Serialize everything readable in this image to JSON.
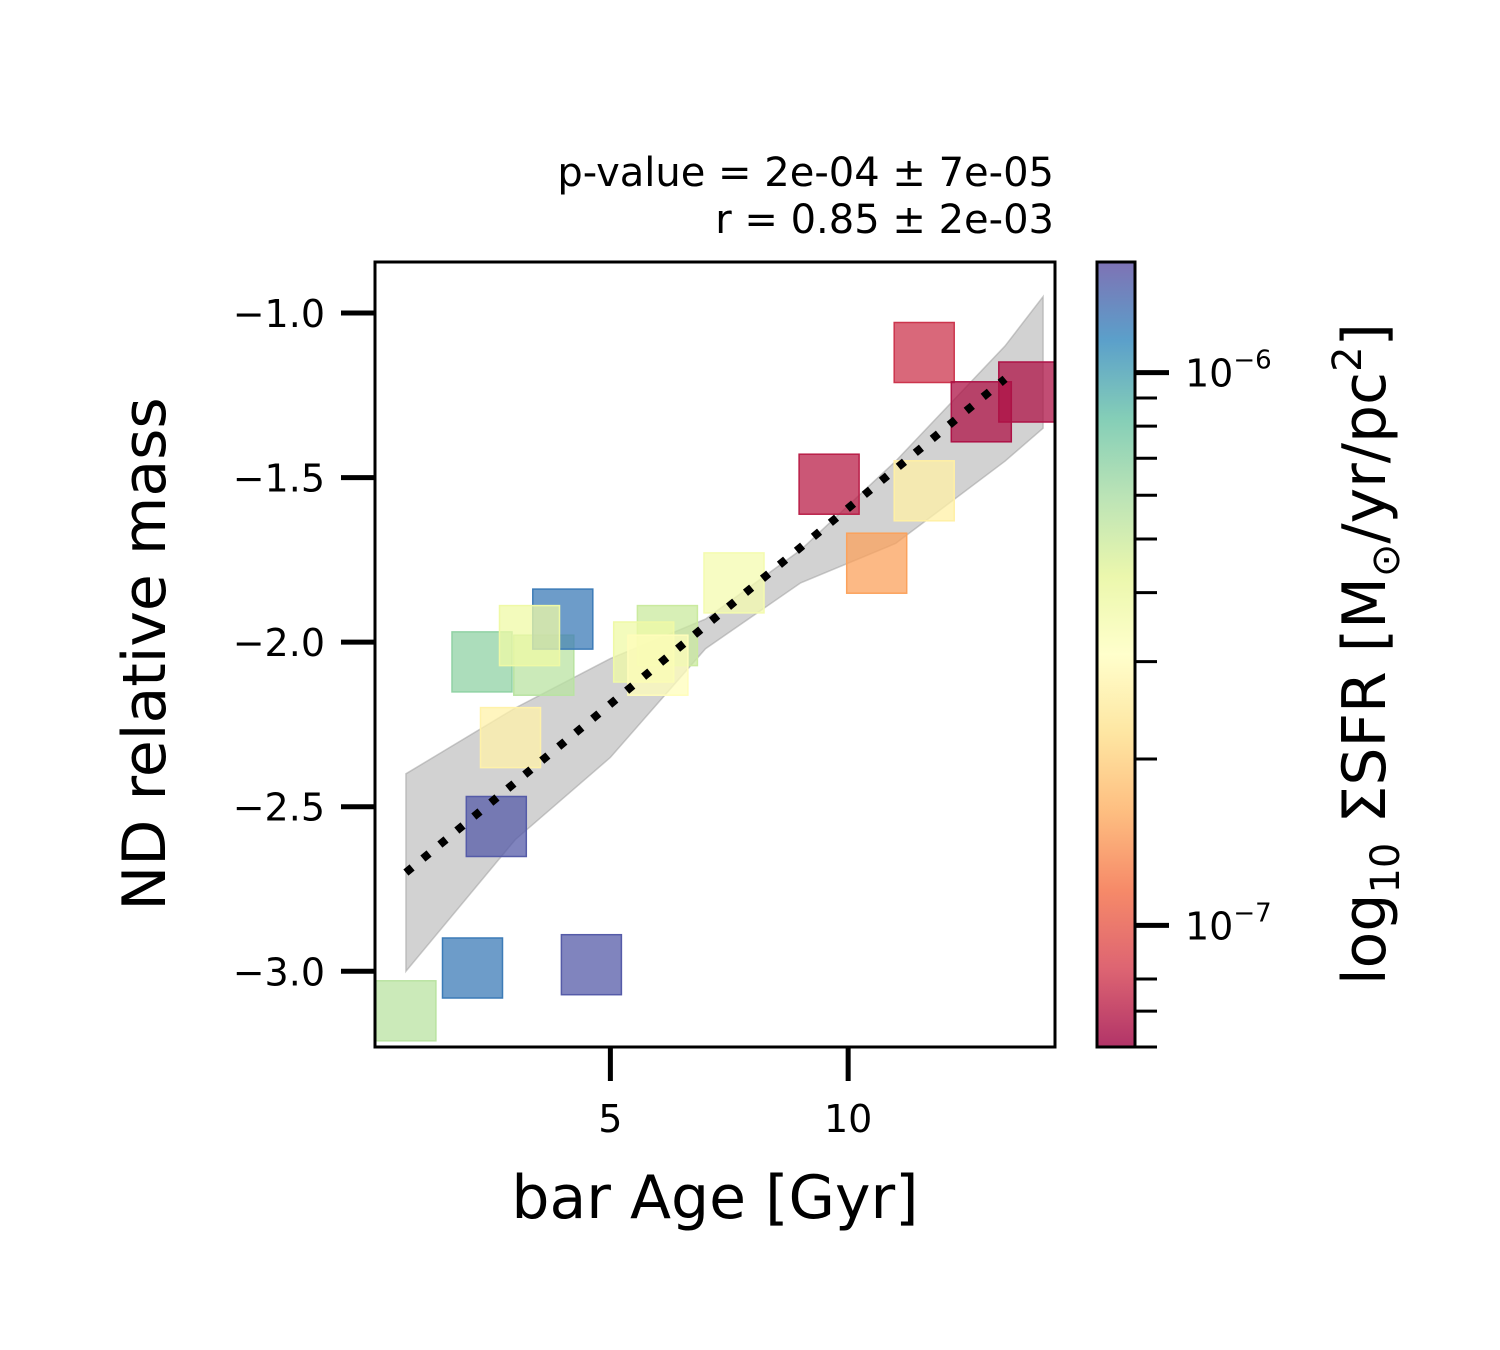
{
  "chart_data": {
    "type": "scatter",
    "annotation_lines": [
      "p-value = 2e-04 ± 7e-05",
      "r = 0.85 ± 2e-03"
    ],
    "xlabel": "bar Age [Gyr]",
    "ylabel": "ND relative mass",
    "xlim": [
      0.05,
      14.35
    ],
    "ylim": [
      -3.23,
      -0.845
    ],
    "x_ticks": [
      5,
      10
    ],
    "x_tick_labels": [
      "5",
      "10"
    ],
    "y_ticks": [
      -1.0,
      -1.5,
      -2.0,
      -2.5,
      -3.0
    ],
    "y_tick_labels": [
      "−1.0",
      "−1.5",
      "−2.0",
      "−2.5",
      "−3.0"
    ],
    "points": [
      {
        "x": 0.7,
        "y": -3.12,
        "log_sfr": -6.26
      },
      {
        "x": 2.1,
        "y": -2.99,
        "log_sfr": -5.91
      },
      {
        "x": 4.6,
        "y": -2.98,
        "log_sfr": -5.83
      },
      {
        "x": 2.6,
        "y": -2.56,
        "log_sfr": -5.83
      },
      {
        "x": 2.9,
        "y": -2.29,
        "log_sfr": -6.57
      },
      {
        "x": 2.3,
        "y": -2.06,
        "log_sfr": -6.17
      },
      {
        "x": 3.6,
        "y": -2.07,
        "log_sfr": -6.26
      },
      {
        "x": 4.0,
        "y": -1.93,
        "log_sfr": -5.91
      },
      {
        "x": 3.3,
        "y": -1.98,
        "log_sfr": -6.42
      },
      {
        "x": 6.2,
        "y": -1.98,
        "log_sfr": -6.3
      },
      {
        "x": 5.7,
        "y": -2.03,
        "log_sfr": -6.42
      },
      {
        "x": 6.0,
        "y": -2.07,
        "log_sfr": -6.52
      },
      {
        "x": 7.6,
        "y": -1.82,
        "log_sfr": -6.45
      },
      {
        "x": 9.6,
        "y": -1.52,
        "log_sfr": -7.15
      },
      {
        "x": 10.6,
        "y": -1.76,
        "log_sfr": -6.82
      },
      {
        "x": 11.6,
        "y": -1.54,
        "log_sfr": -6.58
      },
      {
        "x": 11.6,
        "y": -1.12,
        "log_sfr": -7.1
      },
      {
        "x": 13.8,
        "y": -1.24,
        "log_sfr": -7.18
      },
      {
        "x": 12.8,
        "y": -1.3,
        "log_sfr": -7.18
      }
    ],
    "fit_line": {
      "x": [
        0.7,
        13.3
      ],
      "y": [
        -2.7,
        -1.2
      ],
      "style": "dotted"
    },
    "confidence_band": {
      "x": [
        0.7,
        3.0,
        5.0,
        7.0,
        9.0,
        11.0,
        13.3,
        14.1
      ],
      "upper": [
        -2.4,
        -2.2,
        -2.05,
        -1.93,
        -1.72,
        -1.45,
        -1.1,
        -0.95
      ],
      "lower": [
        -3.0,
        -2.6,
        -2.35,
        -2.02,
        -1.82,
        -1.7,
        -1.45,
        -1.35
      ]
    },
    "colorbar": {
      "label": "log10 ΣSFR [M⊙/yr/pc²]",
      "label_base": "log",
      "label_sub": "10",
      "label_mid": " ΣSFR [M",
      "label_odot": "⊙",
      "label_unit": "/yr/pc",
      "label_sup": "2",
      "label_end": "]",
      "min_log": -7.22,
      "max_log": -5.8,
      "major_ticks": [
        -7,
        -6
      ],
      "major_tick_labels": [
        {
          "base": "10",
          "exp": "−7"
        },
        {
          "base": "10",
          "exp": "−6"
        }
      ],
      "minor_ticks_log": [
        -7.22,
        -7.155,
        -7.097,
        -6.699,
        -6.523,
        -6.398,
        -6.301,
        -6.222,
        -6.155,
        -6.097,
        -6.046
      ],
      "colormap": "Spectral"
    }
  }
}
